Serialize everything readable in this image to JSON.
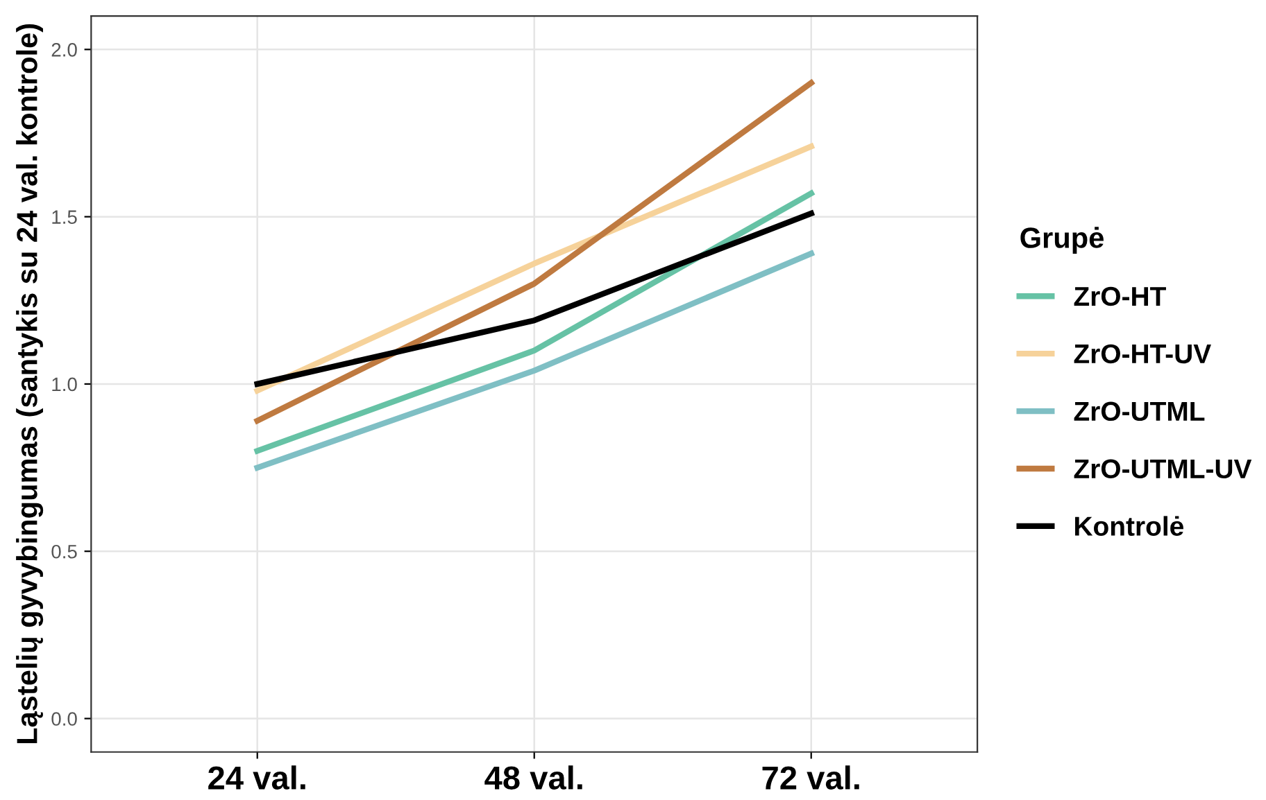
{
  "chart_data": {
    "type": "line",
    "ylabel": "Ląstelių gyvybingumas (santykis su 24 val. kontrole)",
    "legend_title": "Grupė",
    "categories": [
      "24 val.",
      "48 val.",
      "72 val."
    ],
    "series": [
      {
        "name": "ZrO-HT",
        "color": "#66c2a5",
        "values": [
          0.8,
          1.1,
          1.57
        ]
      },
      {
        "name": "ZrO-HT-UV",
        "color": "#f6d29a",
        "values": [
          0.98,
          1.36,
          1.71
        ]
      },
      {
        "name": "ZrO-UTML",
        "color": "#7fbfc4",
        "values": [
          0.75,
          1.04,
          1.39
        ]
      },
      {
        "name": "ZrO-UTML-UV",
        "color": "#bf7a40",
        "values": [
          0.89,
          1.3,
          1.9
        ]
      },
      {
        "name": "Kontrolė",
        "color": "#000000",
        "values": [
          1.0,
          1.19,
          1.51
        ]
      }
    ],
    "ylim": [
      -0.1,
      2.1
    ],
    "yticks": [
      {
        "value": 0,
        "label": "0.0"
      },
      {
        "value": 0.5,
        "label": "0.5"
      },
      {
        "value": 1,
        "label": "1.0"
      },
      {
        "value": 1.5,
        "label": "1.5"
      },
      {
        "value": 2,
        "label": "2.0"
      }
    ],
    "grid": true,
    "legend": "right",
    "marker": "none",
    "line_style": "solid"
  }
}
